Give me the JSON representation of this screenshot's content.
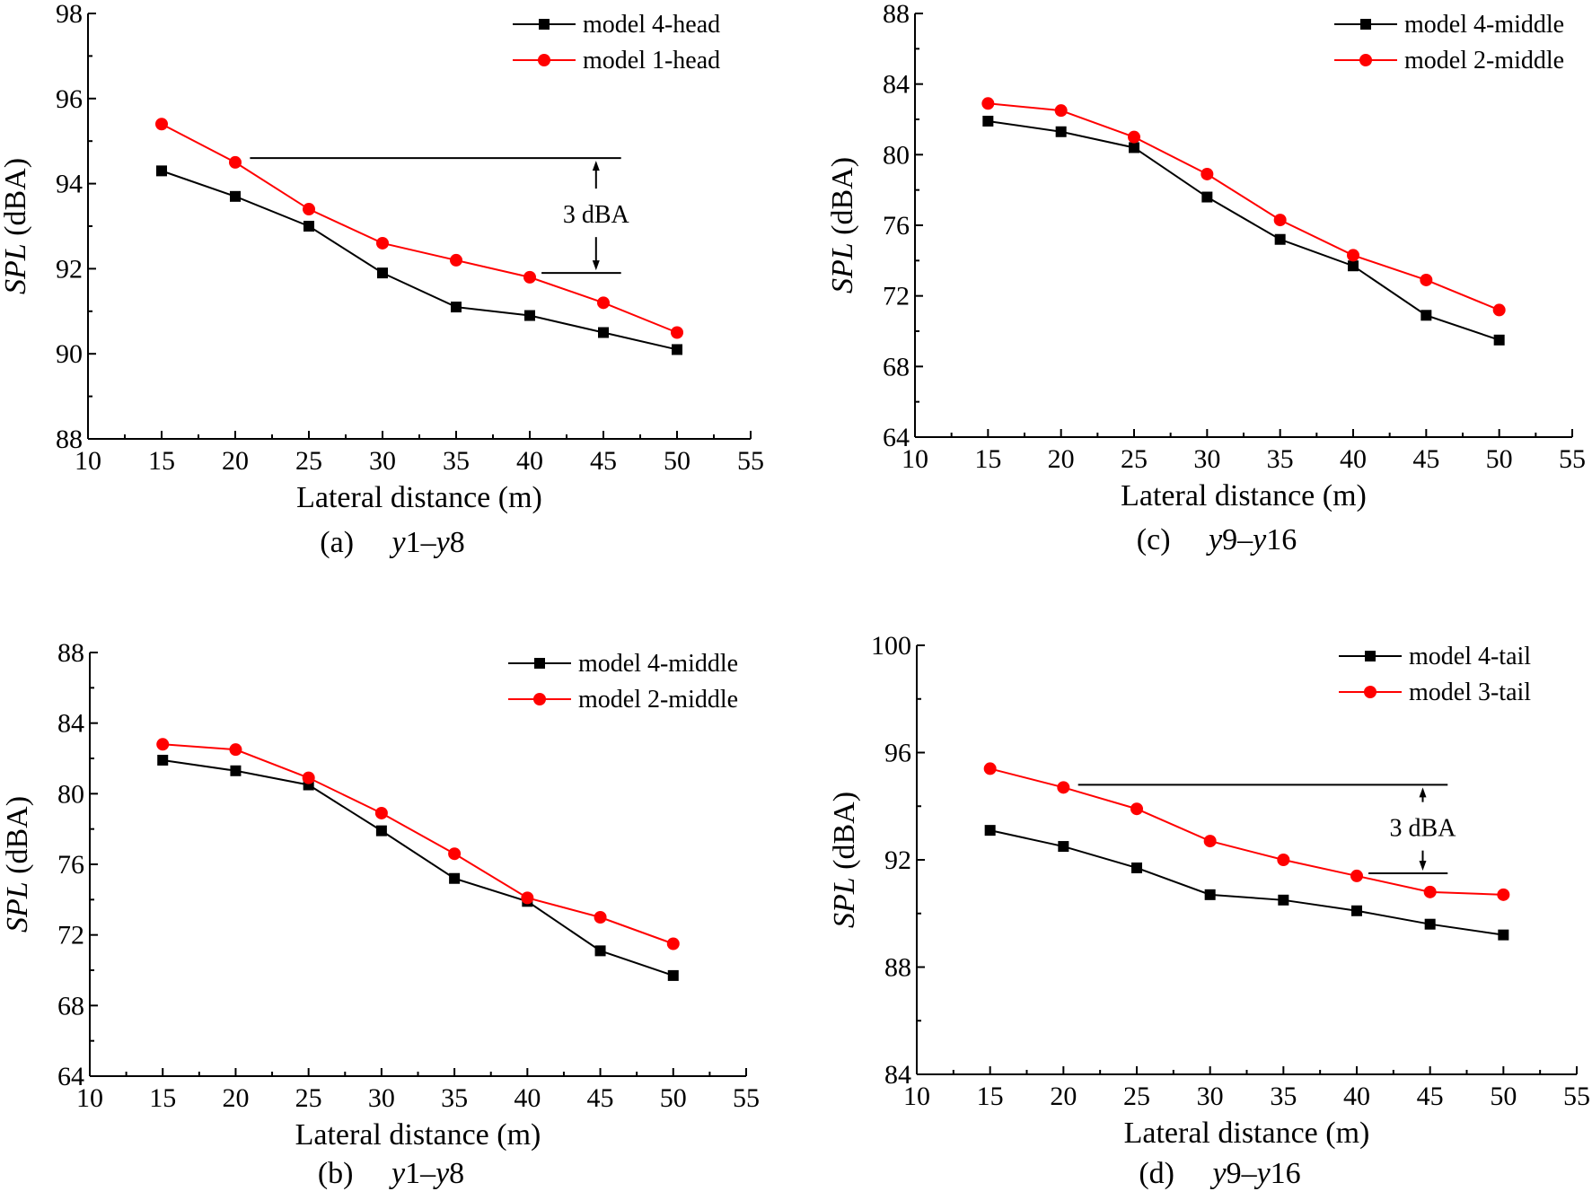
{
  "chart_data": [
    {
      "id": "a",
      "type": "line",
      "caption_prefix": "(a)",
      "caption_range": [
        "y",
        "1–",
        "y",
        "8"
      ],
      "xlabel": "Lateral distance (m)",
      "ylabel_italic": "SPL",
      "ylabel_unit": " (dBA)",
      "xlim": [
        10,
        55
      ],
      "ylim": [
        88,
        98
      ],
      "xticks": [
        10,
        15,
        20,
        25,
        30,
        35,
        40,
        45,
        50,
        55
      ],
      "yticks": [
        88,
        90,
        92,
        94,
        96,
        98
      ],
      "x": [
        15,
        20,
        25,
        30,
        35,
        40,
        45,
        50
      ],
      "series": [
        {
          "name": "model 4-head",
          "color": "#000000",
          "marker": "square",
          "values": [
            94.3,
            93.7,
            93.0,
            91.9,
            91.1,
            90.9,
            90.5,
            90.1
          ]
        },
        {
          "name": "model 1-head",
          "color": "#ff0000",
          "marker": "circle",
          "values": [
            95.4,
            94.5,
            93.4,
            92.6,
            92.2,
            91.8,
            91.2,
            90.5
          ]
        }
      ],
      "legend": "top-right",
      "annotation": {
        "text": "3 dBA",
        "upper_level": 94.6,
        "lower_level": 91.9,
        "upper_from_x": 21,
        "lower_from_x": 40.8,
        "to_x": 46.2,
        "arrow_x": 44.5
      }
    },
    {
      "id": "c",
      "type": "line",
      "caption_prefix": "(c)",
      "caption_range": [
        "y",
        "9–",
        "y",
        "16"
      ],
      "xlabel": "Lateral distance (m)",
      "ylabel_italic": "SPL",
      "ylabel_unit": " (dBA)",
      "xlim": [
        10,
        55
      ],
      "ylim": [
        64,
        88
      ],
      "xticks": [
        10,
        15,
        20,
        25,
        30,
        35,
        40,
        45,
        50,
        55
      ],
      "yticks": [
        64,
        68,
        72,
        76,
        80,
        84,
        88
      ],
      "x": [
        15,
        20,
        25,
        30,
        35,
        40,
        45,
        50
      ],
      "series": [
        {
          "name": "model 4-middle",
          "color": "#000000",
          "marker": "square",
          "values": [
            81.9,
            81.3,
            80.4,
            77.6,
            75.2,
            73.7,
            70.9,
            69.5
          ]
        },
        {
          "name": "model 2-middle",
          "color": "#ff0000",
          "marker": "circle",
          "values": [
            82.9,
            82.5,
            81.0,
            78.9,
            76.3,
            74.3,
            72.9,
            71.2
          ]
        }
      ],
      "legend": "top-right",
      "annotation": null
    },
    {
      "id": "b",
      "type": "line",
      "caption_prefix": "(b)",
      "caption_range": [
        "y",
        "1–",
        "y",
        "8"
      ],
      "xlabel": "Lateral distance (m)",
      "ylabel_italic": "SPL",
      "ylabel_unit": " (dBA)",
      "xlim": [
        10,
        55
      ],
      "ylim": [
        64,
        88
      ],
      "xticks": [
        10,
        15,
        20,
        25,
        30,
        35,
        40,
        45,
        50,
        55
      ],
      "yticks": [
        64,
        68,
        72,
        76,
        80,
        84,
        88
      ],
      "x": [
        15,
        20,
        25,
        30,
        35,
        40,
        45,
        50
      ],
      "series": [
        {
          "name": "model 4-middle",
          "color": "#000000",
          "marker": "square",
          "values": [
            81.9,
            81.3,
            80.5,
            77.9,
            75.2,
            73.9,
            71.1,
            69.7
          ]
        },
        {
          "name": "model 2-middle",
          "color": "#ff0000",
          "marker": "circle",
          "values": [
            82.8,
            82.5,
            80.9,
            78.9,
            76.6,
            74.1,
            73.0,
            71.5
          ]
        }
      ],
      "legend": "top-right",
      "annotation": null
    },
    {
      "id": "d",
      "type": "line",
      "caption_prefix": "(d)",
      "caption_range": [
        "y",
        "9–",
        "y",
        "16"
      ],
      "xlabel": "Lateral distance (m)",
      "ylabel_italic": "SPL",
      "ylabel_unit": " (dBA)",
      "xlim": [
        10,
        55
      ],
      "ylim": [
        84,
        100
      ],
      "xticks": [
        10,
        15,
        20,
        25,
        30,
        35,
        40,
        45,
        50,
        55
      ],
      "yticks": [
        84,
        88,
        92,
        96,
        100
      ],
      "x": [
        15,
        20,
        25,
        30,
        35,
        40,
        45,
        50
      ],
      "series": [
        {
          "name": "model 4-tail",
          "color": "#000000",
          "marker": "square",
          "values": [
            93.1,
            92.5,
            91.7,
            90.7,
            90.5,
            90.1,
            89.6,
            89.2
          ]
        },
        {
          "name": "model 3-tail",
          "color": "#ff0000",
          "marker": "circle",
          "values": [
            95.4,
            94.7,
            93.9,
            92.7,
            92.0,
            91.4,
            90.8,
            90.7
          ]
        }
      ],
      "legend": "top-right",
      "annotation": {
        "text": "3 dBA",
        "upper_level": 94.8,
        "lower_level": 91.5,
        "upper_from_x": 21,
        "lower_from_x": 40.8,
        "to_x": 46.2,
        "arrow_x": 44.5
      }
    }
  ]
}
